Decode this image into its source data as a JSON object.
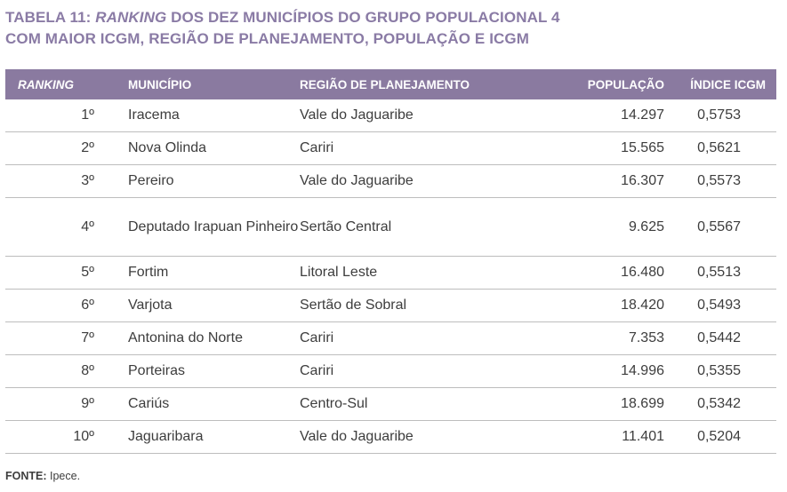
{
  "title": {
    "prefix": "TABELA 11: ",
    "italic": "RANKING",
    "line1_rest": " DOS DEZ MUNICÍPIOS DO GRUPO POPULACIONAL 4",
    "line2": "COM MAIOR ICGM, REGIÃO DE PLANEJAMENTO, POPULAÇÃO E ICGM"
  },
  "table": {
    "headers": [
      "RANKING",
      "MUNICÍPIO",
      "REGIÃO DE PLANEJAMENTO",
      "POPULAÇÃO",
      "ÍNDICE ICGM"
    ],
    "header_color": "#8a7aa0",
    "rows": [
      {
        "rank": "1º",
        "municipio": "Iracema",
        "regiao": "Vale do Jaguaribe",
        "populacao": "14.297",
        "icgm": "0,5753"
      },
      {
        "rank": "2º",
        "municipio": "Nova Olinda",
        "regiao": "Cariri",
        "populacao": "15.565",
        "icgm": "0,5621"
      },
      {
        "rank": "3º",
        "municipio": "Pereiro",
        "regiao": "Vale do Jaguaribe",
        "populacao": "16.307",
        "icgm": "0,5573"
      },
      {
        "rank": "4º",
        "municipio": "Deputado Irapuan Pinheiro",
        "regiao": "Sertão Central",
        "populacao": "9.625",
        "icgm": "0,5567"
      },
      {
        "rank": "5º",
        "municipio": "Fortim",
        "regiao": "Litoral Leste",
        "populacao": "16.480",
        "icgm": "0,5513"
      },
      {
        "rank": "6º",
        "municipio": "Varjota",
        "regiao": "Sertão de Sobral",
        "populacao": "18.420",
        "icgm": "0,5493"
      },
      {
        "rank": "7º",
        "municipio": "Antonina do Norte",
        "regiao": "Cariri",
        "populacao": "7.353",
        "icgm": "0,5442"
      },
      {
        "rank": "8º",
        "municipio": "Porteiras",
        "regiao": "Cariri",
        "populacao": "14.996",
        "icgm": "0,5355"
      },
      {
        "rank": "9º",
        "municipio": "Cariús",
        "regiao": "Centro-Sul",
        "populacao": "18.699",
        "icgm": "0,5342"
      },
      {
        "rank": "10º",
        "municipio": "Jaguaribara",
        "regiao": "Vale do Jaguaribe",
        "populacao": "11.401",
        "icgm": "0,5204"
      }
    ]
  },
  "footer": {
    "label": "FONTE:",
    "text": " Ipece."
  }
}
